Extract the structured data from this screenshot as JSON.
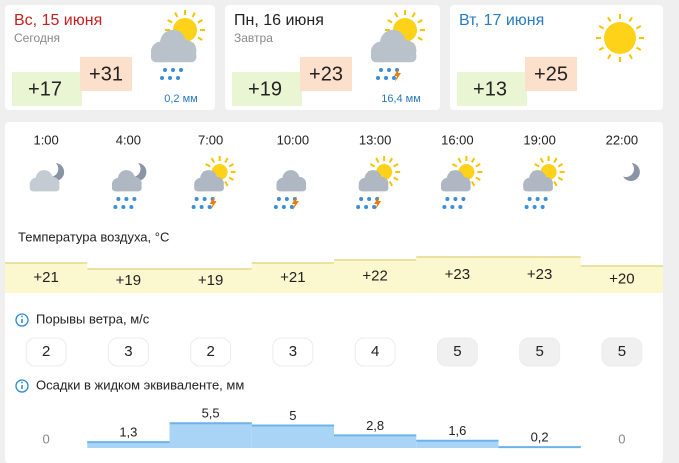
{
  "days": [
    {
      "date": "Вс, 15 июня",
      "label": "Сегодня",
      "min": "+17",
      "max": "+31",
      "precipitation": "0,2 мм"
    },
    {
      "date": "Пн, 16 июня",
      "label": "Завтра",
      "min": "+19",
      "max": "+23",
      "precipitation": "16,4 мм"
    },
    {
      "date": "Вт, 17 июня",
      "min": "+13",
      "max": "+25"
    }
  ],
  "hourly": {
    "times": [
      "1:00",
      "4:00",
      "7:00",
      "10:00",
      "13:00",
      "16:00",
      "19:00",
      "22:00"
    ],
    "temperature": {
      "title": "Температура воздуха, °C",
      "values": [
        21,
        19,
        19,
        21,
        22,
        23,
        23,
        20
      ],
      "value_labels": [
        "+21",
        "+19",
        "+19",
        "+21",
        "+22",
        "+23",
        "+23",
        "+20"
      ]
    },
    "wind": {
      "title": "Порывы ветра, м/с",
      "values": [
        2,
        3,
        2,
        3,
        4,
        5,
        5,
        5
      ]
    },
    "precipitation": {
      "title": "Осадки в жидком эквиваленте, мм",
      "values": [
        0,
        1.3,
        5.5,
        5,
        2.8,
        1.6,
        0.2,
        0
      ],
      "value_labels": [
        "0",
        "1,3",
        "5,5",
        "5",
        "2,8",
        "1,6",
        "0,2",
        "0"
      ]
    }
  }
}
